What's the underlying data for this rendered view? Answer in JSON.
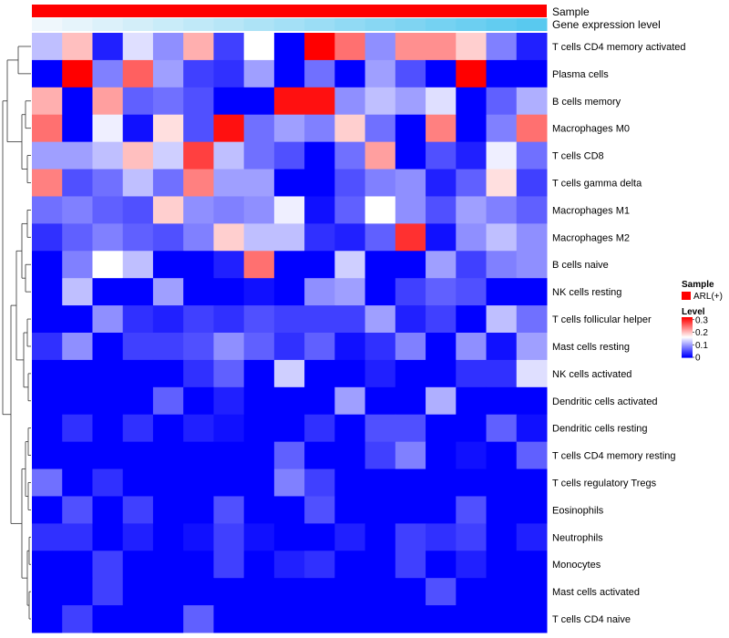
{
  "chart_data": {
    "type": "heatmap",
    "title": "",
    "rows": [
      "T cells CD4 memory activated",
      "Plasma cells",
      "B cells memory",
      "Macrophages M0",
      "T cells CD8",
      "T cells gamma delta",
      "Macrophages M1",
      "Macrophages M2",
      "B cells naive",
      "NK cells resting",
      "T cells follicular helper",
      "Mast cells resting",
      "NK cells activated",
      "Dendritic cells activated",
      "Dendritic cells resting",
      "T cells CD4 memory resting",
      "T cells regulatory  Tregs",
      "Eosinophils",
      "Neutrophils",
      "Monocytes",
      "Mast cells activated",
      "T cells CD4 naive"
    ],
    "values": [
      [
        0.12,
        0.2,
        0.02,
        0.14,
        0.09,
        0.21,
        0.04,
        0.16,
        0.0,
        0.32,
        0.25,
        0.09,
        0.23,
        0.23,
        0.19,
        0.08,
        0.02
      ],
      [
        0.0,
        0.32,
        0.08,
        0.26,
        0.1,
        0.04,
        0.03,
        0.1,
        0.0,
        0.07,
        0.0,
        0.1,
        0.05,
        0.0,
        0.32,
        0.0,
        0.0
      ],
      [
        0.21,
        0.0,
        0.22,
        0.06,
        0.07,
        0.05,
        0.0,
        0.0,
        0.31,
        0.31,
        0.09,
        0.12,
        0.1,
        0.14,
        0.0,
        0.06,
        0.11
      ],
      [
        0.25,
        0.0,
        0.15,
        0.01,
        0.18,
        0.05,
        0.31,
        0.07,
        0.1,
        0.08,
        0.19,
        0.07,
        0.0,
        0.24,
        0.0,
        0.08,
        0.25
      ],
      [
        0.1,
        0.1,
        0.12,
        0.2,
        0.13,
        0.28,
        0.12,
        0.07,
        0.05,
        0.0,
        0.07,
        0.22,
        0.0,
        0.05,
        0.02,
        0.15,
        0.07
      ],
      [
        0.24,
        0.05,
        0.07,
        0.12,
        0.07,
        0.24,
        0.1,
        0.1,
        0.0,
        0.0,
        0.05,
        0.08,
        0.09,
        0.02,
        0.06,
        0.18,
        0.04
      ],
      [
        0.07,
        0.08,
        0.06,
        0.05,
        0.19,
        0.09,
        0.08,
        0.09,
        0.15,
        0.01,
        0.06,
        0.16,
        0.09,
        0.05,
        0.1,
        0.08,
        0.06
      ],
      [
        0.03,
        0.06,
        0.08,
        0.06,
        0.05,
        0.08,
        0.19,
        0.12,
        0.12,
        0.03,
        0.02,
        0.06,
        0.29,
        0.01,
        0.09,
        0.12,
        0.09
      ],
      [
        0.0,
        0.08,
        0.16,
        0.12,
        0.0,
        0.0,
        0.02,
        0.25,
        0.0,
        0.0,
        0.13,
        0.0,
        0.0,
        0.1,
        0.04,
        0.08,
        0.09
      ],
      [
        0.0,
        0.12,
        0.0,
        0.0,
        0.1,
        0.0,
        0.0,
        0.01,
        0.0,
        0.09,
        0.1,
        0.0,
        0.04,
        0.06,
        0.05,
        0.0,
        0.0
      ],
      [
        0.0,
        0.0,
        0.09,
        0.03,
        0.02,
        0.04,
        0.03,
        0.05,
        0.04,
        0.04,
        0.04,
        0.1,
        0.02,
        0.04,
        0.0,
        0.12,
        0.07
      ],
      [
        0.03,
        0.09,
        0.0,
        0.04,
        0.04,
        0.05,
        0.09,
        0.06,
        0.03,
        0.06,
        0.01,
        0.03,
        0.08,
        0.0,
        0.09,
        0.01,
        0.1
      ],
      [
        0.0,
        0.0,
        0.0,
        0.0,
        0.0,
        0.03,
        0.06,
        0.0,
        0.13,
        0.0,
        0.0,
        0.02,
        0.0,
        0.0,
        0.03,
        0.03,
        0.14
      ],
      [
        0.0,
        0.0,
        0.0,
        0.0,
        0.06,
        0.0,
        0.02,
        0.0,
        0.0,
        0.0,
        0.1,
        0.0,
        0.0,
        0.11,
        0.0,
        0.0,
        0.0
      ],
      [
        0.0,
        0.03,
        0.0,
        0.03,
        0.0,
        0.02,
        0.01,
        0.0,
        0.0,
        0.03,
        0.0,
        0.05,
        0.05,
        0.0,
        0.0,
        0.06,
        0.01
      ],
      [
        0.0,
        0.0,
        0.0,
        0.0,
        0.0,
        0.0,
        0.0,
        0.0,
        0.06,
        0.0,
        0.0,
        0.04,
        0.08,
        0.0,
        0.01,
        0.0,
        0.06
      ],
      [
        0.07,
        0.0,
        0.03,
        0.0,
        0.0,
        0.0,
        0.0,
        0.0,
        0.08,
        0.04,
        0.0,
        0.0,
        0.0,
        0.0,
        0.0,
        0.0,
        0.0
      ],
      [
        0.0,
        0.05,
        0.0,
        0.04,
        0.0,
        0.0,
        0.05,
        0.0,
        0.0,
        0.05,
        0.0,
        0.0,
        0.0,
        0.0,
        0.05,
        0.0,
        0.0
      ],
      [
        0.03,
        0.03,
        0.0,
        0.02,
        0.0,
        0.01,
        0.04,
        0.01,
        0.0,
        0.0,
        0.02,
        0.0,
        0.04,
        0.03,
        0.04,
        0.0,
        0.02
      ],
      [
        0.0,
        0.0,
        0.04,
        0.0,
        0.0,
        0.0,
        0.04,
        0.0,
        0.02,
        0.03,
        0.0,
        0.0,
        0.04,
        0.0,
        0.02,
        0.0,
        0.0
      ],
      [
        0.0,
        0.0,
        0.04,
        0.0,
        0.0,
        0.0,
        0.0,
        0.0,
        0.0,
        0.0,
        0.0,
        0.0,
        0.0,
        0.05,
        0.0,
        0.0,
        0.0
      ],
      [
        0.0,
        0.04,
        0.0,
        0.0,
        0.0,
        0.06,
        0.0,
        0.0,
        0.0,
        0.0,
        0.0,
        0.0,
        0.0,
        0.0,
        0.0,
        0.0,
        0.0
      ]
    ],
    "column_annotations": [
      {
        "name": "Sample",
        "values": "all ARL(+)"
      },
      {
        "name": "Gene expression level",
        "values": [
          0.02,
          0.08,
          0.14,
          0.2,
          0.26,
          0.32,
          0.38,
          0.44,
          0.5,
          0.56,
          0.62,
          0.68,
          0.74,
          0.8,
          0.86,
          0.92,
          0.98
        ]
      }
    ],
    "legend": [
      {
        "title": "Sample",
        "items": [
          {
            "label": "ARL(+)",
            "color": "#ff0000"
          }
        ]
      },
      {
        "title": "Level",
        "ticks": [
          "0.3",
          "0.2",
          "0.1",
          "0"
        ],
        "range": [
          0,
          0.32
        ]
      }
    ],
    "colors": {
      "low": "#0000ff",
      "mid": "#ffffff",
      "high": "#ff0000",
      "sample": "#ff0000",
      "expr_low": "#f2f8fc",
      "expr_high": "#56c8ef"
    },
    "dendrogram": "row clustering"
  }
}
